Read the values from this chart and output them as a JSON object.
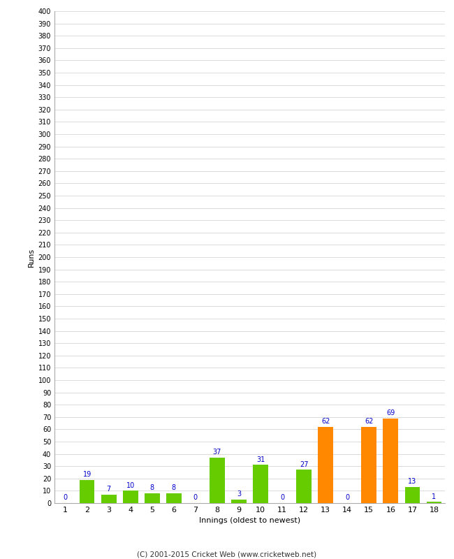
{
  "xlabel": "Innings (oldest to newest)",
  "ylabel": "Runs",
  "categories": [
    1,
    2,
    3,
    4,
    5,
    6,
    7,
    8,
    9,
    10,
    11,
    12,
    13,
    14,
    15,
    16,
    17,
    18
  ],
  "values": [
    0,
    19,
    7,
    10,
    8,
    8,
    0,
    37,
    3,
    31,
    0,
    27,
    62,
    0,
    62,
    69,
    13,
    1
  ],
  "colors": [
    "#66cc00",
    "#66cc00",
    "#66cc00",
    "#66cc00",
    "#66cc00",
    "#66cc00",
    "#66cc00",
    "#66cc00",
    "#66cc00",
    "#66cc00",
    "#66cc00",
    "#66cc00",
    "#ff8800",
    "#66cc00",
    "#ff8800",
    "#ff8800",
    "#66cc00",
    "#66cc00"
  ],
  "ylim": [
    0,
    400
  ],
  "background_color": "#ffffff",
  "grid_color": "#cccccc",
  "label_color": "#0000cc",
  "footer": "(C) 2001-2015 Cricket Web (www.cricketweb.net)"
}
